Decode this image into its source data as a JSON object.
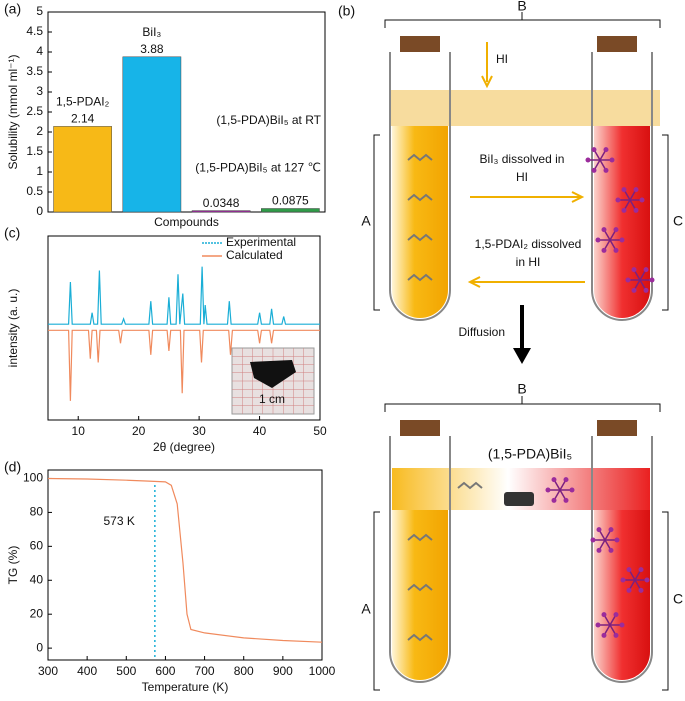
{
  "chart_data": [
    {
      "type": "bar",
      "panel_label": "(a)",
      "y_label": "Solubility (mmol ml⁻¹)",
      "x_label": "Compounds",
      "categories": [
        "1,5-PDAI₂",
        "BiI₃",
        "(1,5-PDA)BiI₅ at RT",
        "(1,5-PDA)BiI₅ at 127 ℃"
      ],
      "values": [
        2.14,
        3.88,
        0.0348,
        0.0875
      ],
      "colors": [
        "#f7b917",
        "#17b4e8",
        "#9b2c9c",
        "#2f9c48"
      ],
      "ylim": [
        0,
        5
      ],
      "yticks": [
        0,
        0.5,
        1,
        1.5,
        2,
        2.5,
        3,
        3.5,
        4,
        4.5,
        5
      ]
    },
    {
      "type": "line",
      "panel_label": "(c)",
      "y_label": "intensity (a. u.)",
      "x_label": "2θ (degree)",
      "xlim": [
        5,
        50
      ],
      "xticks": [
        10,
        20,
        30,
        40,
        50
      ],
      "ylim": [
        -1.2,
        1.2
      ],
      "legend": "top-right",
      "annotation": "1 cm",
      "series": [
        {
          "name": "Experimental",
          "color": "#1aaed6",
          "x": [
            5,
            8.4,
            8.7,
            9,
            12,
            12.3,
            12.6,
            13.2,
            13.5,
            13.8,
            17.2,
            17.5,
            17.8,
            21.7,
            22,
            22.3,
            24.7,
            25,
            25.3,
            26.2,
            26.5,
            26.8,
            27.3,
            27.6,
            30.2,
            30.5,
            30.8,
            31,
            31.3,
            34.7,
            35,
            35.3,
            39.7,
            40,
            40.3,
            41.7,
            42,
            42.3,
            43.7,
            44,
            44.3,
            50
          ],
          "values": [
            0.05,
            0.05,
            0.6,
            0.05,
            0.05,
            0.2,
            0.05,
            0.05,
            0.75,
            0.05,
            0.05,
            0.12,
            0.05,
            0.05,
            0.35,
            0.05,
            0.05,
            0.4,
            0.05,
            0.05,
            0.7,
            0.05,
            0.45,
            0.05,
            0.05,
            0.8,
            0.05,
            0.3,
            0.05,
            0.05,
            0.35,
            0.05,
            0.05,
            0.2,
            0.05,
            0.05,
            0.25,
            0.05,
            0.05,
            0.15,
            0.05,
            0.05
          ]
        },
        {
          "name": "Calculated",
          "color": "#f08a5d",
          "x": [
            5,
            8.4,
            8.7,
            9,
            11.7,
            12,
            12.3,
            13,
            13.3,
            13.6,
            16.7,
            17,
            17.3,
            21.7,
            22,
            22.3,
            24.7,
            25,
            25.3,
            26.9,
            27.2,
            27.5,
            30.1,
            30.4,
            30.7,
            34.9,
            35.2,
            35.5,
            39.7,
            40,
            40.3,
            41.7,
            42,
            42.3,
            50
          ],
          "values": [
            -0.03,
            -0.03,
            -0.95,
            -0.03,
            -0.03,
            -0.4,
            -0.03,
            -0.03,
            -0.45,
            -0.03,
            -0.03,
            -0.2,
            -0.03,
            -0.03,
            -0.35,
            -0.03,
            -0.03,
            -0.3,
            -0.03,
            -0.03,
            -0.85,
            -0.03,
            -0.03,
            -0.45,
            -0.03,
            -0.03,
            -0.35,
            -0.03,
            -0.03,
            -0.2,
            -0.03,
            -0.03,
            -0.2,
            -0.03,
            -0.03
          ]
        }
      ]
    },
    {
      "type": "line",
      "panel_label": "(d)",
      "y_label": "TG (%)",
      "x_label": "Temperature (K)",
      "xlim": [
        300,
        1000
      ],
      "xticks": [
        300,
        400,
        500,
        600,
        700,
        800,
        900,
        1000
      ],
      "ylim": [
        -7,
        105
      ],
      "yticks": [
        0,
        20,
        40,
        60,
        80,
        100
      ],
      "vline": {
        "x": 573,
        "label": "573 K",
        "color": "#1aaed6"
      },
      "series": [
        {
          "color": "#f08a5d",
          "x": [
            300,
            400,
            500,
            550,
            600,
            615,
            630,
            645,
            655,
            665,
            700,
            800,
            900,
            1000
          ],
          "values": [
            100,
            99.7,
            99,
            98.5,
            98,
            96,
            85,
            50,
            20,
            11,
            9,
            6,
            4.5,
            3.5
          ]
        }
      ]
    }
  ],
  "diagram": {
    "panel_label": "(b)",
    "top": {
      "brace": "B",
      "left": "A",
      "right": "C",
      "inlet": "HI",
      "to_right": [
        "BiI₃ dissolved in",
        "HI"
      ],
      "to_left": [
        "1,5-PDAI₂ dissolved",
        "in HI"
      ]
    },
    "step": "Diffusion",
    "bottom": {
      "brace": "B",
      "left": "A",
      "right": "C",
      "product": "(1,5-PDA)BiI₅"
    }
  }
}
